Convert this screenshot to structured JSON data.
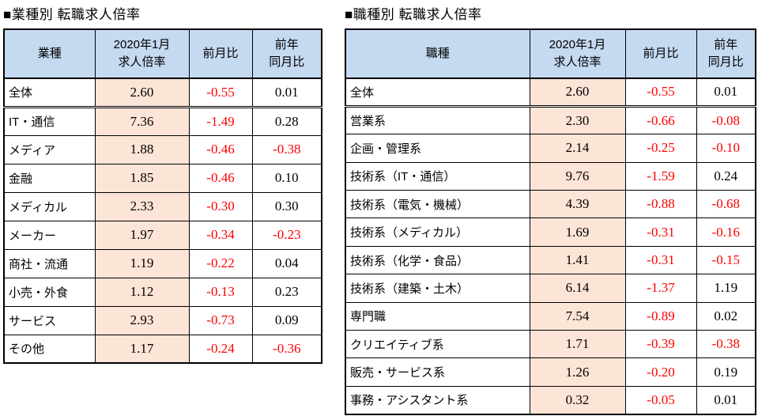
{
  "colors": {
    "header_bg": "#c5d9f1",
    "ratio_col_bg": "#fce4d6",
    "border": "#000000",
    "negative_text": "#ff0000",
    "positive_text": "#000000"
  },
  "tables": [
    {
      "id": "industry",
      "title": "■業種別 転職求人倍率",
      "headers": [
        "業種",
        "2020年1月\n求人倍率",
        "前月比",
        "前年\n同月比"
      ],
      "rows": [
        {
          "label": "全体",
          "ratio": "2.60",
          "mom": "-0.55",
          "yoy": "0.01"
        },
        {
          "label": "IT・通信",
          "ratio": "7.36",
          "mom": "-1.49",
          "yoy": "0.28"
        },
        {
          "label": "メディア",
          "ratio": "1.88",
          "mom": "-0.46",
          "yoy": "-0.38"
        },
        {
          "label": "金融",
          "ratio": "1.85",
          "mom": "-0.46",
          "yoy": "0.10"
        },
        {
          "label": "メディカル",
          "ratio": "2.33",
          "mom": "-0.30",
          "yoy": "0.30"
        },
        {
          "label": "メーカー",
          "ratio": "1.97",
          "mom": "-0.34",
          "yoy": "-0.23"
        },
        {
          "label": "商社・流通",
          "ratio": "1.19",
          "mom": "-0.22",
          "yoy": "0.04"
        },
        {
          "label": "小売・外食",
          "ratio": "1.12",
          "mom": "-0.13",
          "yoy": "0.23"
        },
        {
          "label": "サービス",
          "ratio": "2.93",
          "mom": "-0.73",
          "yoy": "0.09"
        },
        {
          "label": "その他",
          "ratio": "1.17",
          "mom": "-0.24",
          "yoy": "-0.36"
        }
      ]
    },
    {
      "id": "occupation",
      "title": "■職種別 転職求人倍率",
      "headers": [
        "職種",
        "2020年1月\n求人倍率",
        "前月比",
        "前年\n同月比"
      ],
      "rows": [
        {
          "label": "全体",
          "ratio": "2.60",
          "mom": "-0.55",
          "yoy": "0.01"
        },
        {
          "label": "営業系",
          "ratio": "2.30",
          "mom": "-0.66",
          "yoy": "-0.08"
        },
        {
          "label": "企画・管理系",
          "ratio": "2.14",
          "mom": "-0.25",
          "yoy": "-0.10"
        },
        {
          "label": "技術系（IT・通信）",
          "ratio": "9.76",
          "mom": "-1.59",
          "yoy": "0.24"
        },
        {
          "label": "技術系（電気・機械）",
          "ratio": "4.39",
          "mom": "-0.88",
          "yoy": "-0.68"
        },
        {
          "label": "技術系（メディカル）",
          "ratio": "1.69",
          "mom": "-0.31",
          "yoy": "-0.16"
        },
        {
          "label": "技術系（化学・食品）",
          "ratio": "1.41",
          "mom": "-0.31",
          "yoy": "-0.15"
        },
        {
          "label": "技術系（建築・土木）",
          "ratio": "6.14",
          "mom": "-1.37",
          "yoy": "1.19"
        },
        {
          "label": "専門職",
          "ratio": "7.54",
          "mom": "-0.89",
          "yoy": "0.02"
        },
        {
          "label": "クリエイティブ系",
          "ratio": "1.71",
          "mom": "-0.39",
          "yoy": "-0.38"
        },
        {
          "label": "販売・サービス系",
          "ratio": "1.26",
          "mom": "-0.20",
          "yoy": "0.19"
        },
        {
          "label": "事務・アシスタント系",
          "ratio": "0.32",
          "mom": "-0.05",
          "yoy": "0.01"
        }
      ]
    }
  ]
}
